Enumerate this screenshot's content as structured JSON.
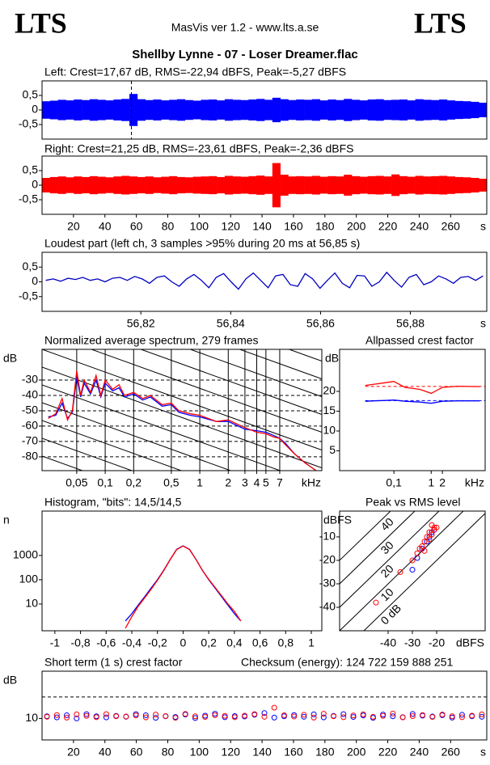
{
  "header": {
    "logo_left": "LTS",
    "app": "MasVis ver 1.2 - www.lts.a.se",
    "logo_right": "LTS",
    "file": "Shellby Lynne - 07 - Loser Dreamer.flac"
  },
  "chart_data": [
    {
      "type": "waveform",
      "title": "Left: Crest=17,67 dB, RMS=-22,94 dBFS, Peak=-5,27 dBFS",
      "color": "#0000ff",
      "xlim": [
        0,
        283
      ],
      "ylim": [
        -1,
        1
      ],
      "yticks": [
        {
          "value": 0.5,
          "label": "0,5"
        },
        0,
        {
          "value": -0.5,
          "label": "-0,5"
        }
      ],
      "marker_x": 56.85,
      "values": [
        0.3,
        0.32,
        0.35,
        0.33,
        0.36,
        0.34,
        0.37,
        0.35,
        0.33,
        0.36,
        0.38,
        0.55,
        0.37,
        0.34,
        0.36,
        0.33,
        0.35,
        0.37,
        0.34,
        0.32,
        0.35,
        0.36,
        0.33,
        0.37,
        0.35,
        0.34,
        0.36,
        0.38,
        0.35,
        0.42,
        0.37,
        0.34,
        0.36,
        0.35,
        0.37,
        0.33,
        0.36,
        0.34,
        0.38,
        0.35,
        0.33,
        0.36,
        0.37,
        0.34,
        0.35,
        0.36,
        0.33,
        0.37,
        0.35,
        0.34,
        0.36,
        0.33,
        0.31,
        0.3,
        0.28,
        0.25
      ]
    },
    {
      "type": "waveform",
      "title": "Right: Crest=21,25 dB, RMS=-23,61 dBFS, Peak=-2,36 dBFS",
      "color": "#ff0000",
      "xlim": [
        0,
        283
      ],
      "ylim": [
        -1,
        1
      ],
      "yticks": [
        {
          "value": 0.5,
          "label": "0,5"
        },
        0,
        {
          "value": -0.5,
          "label": "-0,5"
        }
      ],
      "xticks": [
        20,
        40,
        60,
        80,
        100,
        120,
        140,
        160,
        180,
        200,
        220,
        240,
        260
      ],
      "xlabel": "s",
      "values": [
        0.25,
        0.28,
        0.3,
        0.27,
        0.3,
        0.28,
        0.31,
        0.29,
        0.27,
        0.3,
        0.32,
        0.3,
        0.28,
        0.3,
        0.27,
        0.29,
        0.31,
        0.28,
        0.27,
        0.29,
        0.3,
        0.31,
        0.28,
        0.32,
        0.3,
        0.29,
        0.31,
        0.33,
        0.3,
        0.76,
        0.36,
        0.3,
        0.31,
        0.3,
        0.32,
        0.29,
        0.31,
        0.3,
        0.36,
        0.31,
        0.29,
        0.31,
        0.32,
        0.3,
        0.37,
        0.31,
        0.29,
        0.32,
        0.3,
        0.31,
        0.32,
        0.3,
        0.28,
        0.27,
        0.25,
        0.22
      ]
    },
    {
      "type": "line",
      "title": "Loudest part (left  ch, 3 samples >95% during 20 ms at 56,85 s)",
      "color": "#0000c0",
      "xlim": [
        56.798,
        56.897
      ],
      "ylim": [
        -1,
        1
      ],
      "yticks": [
        {
          "value": 0.5,
          "label": "0,5"
        },
        0,
        {
          "value": -0.5,
          "label": "-0,5"
        }
      ],
      "xticks": [
        {
          "value": 56.82,
          "label": "56,82"
        },
        {
          "value": 56.84,
          "label": "56,84"
        },
        {
          "value": 56.86,
          "label": "56,86"
        },
        {
          "value": 56.88,
          "label": "56,88"
        }
      ],
      "xlabel": "s",
      "values": [
        0.05,
        0.1,
        0.02,
        0.12,
        0.08,
        0.15,
        0.05,
        0.1,
        0.0,
        0.12,
        0.15,
        0.05,
        0.18,
        0.1,
        -0.05,
        0.15,
        0.2,
        0.0,
        -0.15,
        0.1,
        0.25,
        0.05,
        -0.2,
        0.15,
        0.28,
        0.0,
        -0.25,
        0.1,
        0.3,
        0.05,
        -0.2,
        0.2,
        0.25,
        -0.1,
        -0.15,
        0.28,
        0.1,
        -0.22,
        0.05,
        0.3,
        -0.05,
        -0.2,
        0.22,
        0.2,
        -0.15,
        0.0,
        0.32,
        0.05,
        -0.18,
        0.15,
        0.25,
        -0.1,
        0.0,
        0.2,
        0.1,
        -0.05,
        0.15,
        0.18,
        0.05,
        0.2
      ]
    },
    {
      "type": "line",
      "title": "Normalized average spectrum, 279 frames",
      "ylabel": "dB",
      "xlabel": "kHz",
      "xlog": true,
      "grid": true,
      "xlim": [
        0.0215,
        19.5
      ],
      "ylim": [
        -89,
        -10
      ],
      "yticks": [
        -30,
        -40,
        -50,
        -60,
        -70,
        -80
      ],
      "xticks": [
        {
          "value": 0.05,
          "label": "0,05"
        },
        {
          "value": 0.1,
          "label": "0,1"
        },
        {
          "value": 0.2,
          "label": "0,2"
        },
        {
          "value": 0.5,
          "label": "0,5"
        },
        1,
        2,
        3,
        4,
        5,
        7
      ],
      "x": [
        0.025,
        0.03,
        0.035,
        0.04,
        0.045,
        0.05,
        0.055,
        0.06,
        0.07,
        0.08,
        0.09,
        0.1,
        0.12,
        0.14,
        0.16,
        0.2,
        0.25,
        0.3,
        0.4,
        0.5,
        0.6,
        0.8,
        1,
        1.5,
        2,
        3,
        4,
        5,
        6,
        7,
        8,
        10,
        13,
        17
      ],
      "series": [
        {
          "color": "#0000ff",
          "values": [
            -54,
            -53,
            -45,
            -55,
            -51,
            -28,
            -41,
            -32,
            -39,
            -30,
            -41,
            -32,
            -37,
            -35,
            -41,
            -39,
            -43,
            -41,
            -47,
            -46,
            -51,
            -53,
            -54,
            -57,
            -57,
            -62,
            -63,
            -64,
            -66,
            -68,
            -71,
            -78,
            -84,
            -89
          ]
        },
        {
          "color": "#ff0000",
          "values": [
            -55,
            -52,
            -42,
            -56,
            -50,
            -24,
            -40,
            -30,
            -38,
            -27,
            -40,
            -30,
            -36,
            -33,
            -40,
            -38,
            -42,
            -40,
            -46,
            -45,
            -50,
            -52,
            -53,
            -57,
            -56,
            -61,
            -64,
            -65,
            -67,
            -68,
            -72,
            -78,
            -84,
            -89
          ]
        }
      ]
    },
    {
      "type": "line",
      "title": "Allpassed crest factor",
      "ylabel": "dB",
      "xlabel": "kHz",
      "xlog": true,
      "xlim": [
        0.0035,
        28
      ],
      "ylim": [
        0,
        30.6
      ],
      "yticks": [
        20,
        15,
        10,
        5
      ],
      "xticks": [
        {
          "value": 0.1,
          "label": "0,1"
        },
        1,
        2
      ],
      "x": [
        0.017,
        0.03,
        0.06,
        0.1,
        0.2,
        0.5,
        1,
        2,
        5,
        20
      ],
      "series": [
        {
          "color": "#ff0000",
          "ref": 21.25,
          "values": [
            21.5,
            21.8,
            22.2,
            22.5,
            21,
            20.5,
            19.5,
            21,
            21.3,
            21.2
          ]
        },
        {
          "color": "#0000ff",
          "ref": 17.67,
          "values": [
            17.5,
            17.6,
            17.7,
            17.8,
            17.5,
            17.3,
            17,
            17.5,
            17.6,
            17.6
          ]
        }
      ]
    },
    {
      "type": "line",
      "title": "Histogram, \"bits\": 14,5/14,5",
      "ylabel": "n",
      "ylog": true,
      "xlim": [
        -1.1,
        1.082
      ],
      "ylim": [
        0.79,
        67600
      ],
      "yticks": [
        1000,
        100,
        10
      ],
      "xticks": [
        -1,
        {
          "value": -0.8,
          "label": "-0,8"
        },
        {
          "value": -0.6,
          "label": "-0,6"
        },
        {
          "value": -0.4,
          "label": "-0,4"
        },
        {
          "value": -0.2,
          "label": "-0,2"
        },
        0,
        {
          "value": 0.2,
          "label": "0,2"
        },
        {
          "value": 0.4,
          "label": "0,4"
        },
        {
          "value": 0.6,
          "label": "0,6"
        },
        {
          "value": 0.8,
          "label": "0,8"
        },
        1
      ],
      "x": [
        -0.45,
        -0.4,
        -0.35,
        -0.3,
        -0.25,
        -0.2,
        -0.15,
        -0.1,
        -0.05,
        0,
        0.05,
        0.1,
        0.15,
        0.2,
        0.25,
        0.3,
        0.35,
        0.4,
        0.45
      ],
      "series": [
        {
          "color": "#0000ff",
          "values": [
            2,
            4,
            9,
            20,
            45,
            100,
            250,
            700,
            1800,
            2500,
            1800,
            700,
            250,
            100,
            45,
            20,
            9,
            4,
            2
          ]
        },
        {
          "color": "#ff0000",
          "values": [
            1,
            3,
            8,
            18,
            40,
            95,
            240,
            680,
            1750,
            2450,
            1750,
            690,
            245,
            105,
            48,
            22,
            10,
            5,
            2
          ]
        }
      ]
    },
    {
      "type": "scatter",
      "title": "Peak vs RMS level",
      "ylabel": "dBFS",
      "xlabel": "dBFS",
      "xlim": [
        -60,
        0
      ],
      "ylim": [
        -50,
        1
      ],
      "yticks": [
        -10,
        -20,
        -30,
        -40
      ],
      "xticks": [
        -40,
        -30,
        -20
      ],
      "crest_lines": [
        {
          "value": 40,
          "label": "40"
        },
        {
          "value": 30,
          "label": "30"
        },
        {
          "value": 20,
          "label": "20"
        },
        {
          "value": 10,
          "label": "10"
        },
        {
          "value": 0,
          "label": "0 dB"
        }
      ],
      "series": [
        {
          "color": "#0000ff",
          "x": [
            -22,
            -24,
            -26,
            -28,
            -21,
            -23,
            -30
          ],
          "values": [
            -8,
            -12,
            -15,
            -19,
            -7,
            -10,
            -24
          ]
        },
        {
          "color": "#ff0000",
          "x": [
            -22,
            -21,
            -23,
            -24,
            -25,
            -26,
            -27,
            -28,
            -22,
            -21,
            -20,
            -23,
            -25,
            -30,
            -35,
            -45
          ],
          "values": [
            -5,
            -7,
            -8,
            -10,
            -12,
            -14,
            -15,
            -17,
            -9,
            -6,
            -6,
            -11,
            -16,
            -20,
            -25,
            -38
          ]
        }
      ]
    },
    {
      "type": "scatter",
      "title": "Short term (1 s) crest factor",
      "annotation": "Checksum (energy):   124 722 159 888 251",
      "ylabel": "dB",
      "xlim": [
        0,
        283
      ],
      "ylim": [
        0,
        32
      ],
      "yticks": [
        10
      ],
      "ref_line": 20,
      "xticks": [
        20,
        40,
        60,
        80,
        100,
        120,
        140,
        160,
        180,
        200,
        220,
        240,
        260
      ],
      "xlabel": "s",
      "series": [
        {
          "color": "#0000ff",
          "values": [
            11,
            10.5,
            11.5,
            10,
            12,
            11,
            10.5,
            11.2,
            10.8,
            12,
            11.5,
            10.3,
            11,
            10.7,
            11.8,
            10.2,
            11.3,
            12.2,
            10.6,
            11.1,
            10.9,
            11.7,
            12.5,
            10.4,
            11,
            11.6,
            10.8,
            11.9,
            10.5,
            11.2,
            12,
            10.7,
            11.4,
            10.3,
            11.8,
            11,
            10.6,
            12.1,
            11.3,
            10.9,
            11.5,
            10.4,
            11.7,
            11,
            10.8
          ]
        },
        {
          "color": "#ff0000",
          "values": [
            10.8,
            11.6,
            10.4,
            11.9,
            11.2,
            10.6,
            12,
            11,
            10.9,
            11.4,
            10.5,
            11.8,
            11.1,
            10.3,
            12.1,
            11,
            10.7,
            11.5,
            11.2,
            10.6,
            11.3,
            12,
            10.8,
            15,
            11.5,
            10.9,
            11.7,
            10.4,
            12.2,
            11,
            10.6,
            11.4,
            11.9,
            10.8,
            11.2,
            12.3,
            10.5,
            11.1,
            11.6,
            10.7,
            11.8,
            11,
            10.6,
            11.3,
            11.9
          ]
        }
      ]
    }
  ]
}
